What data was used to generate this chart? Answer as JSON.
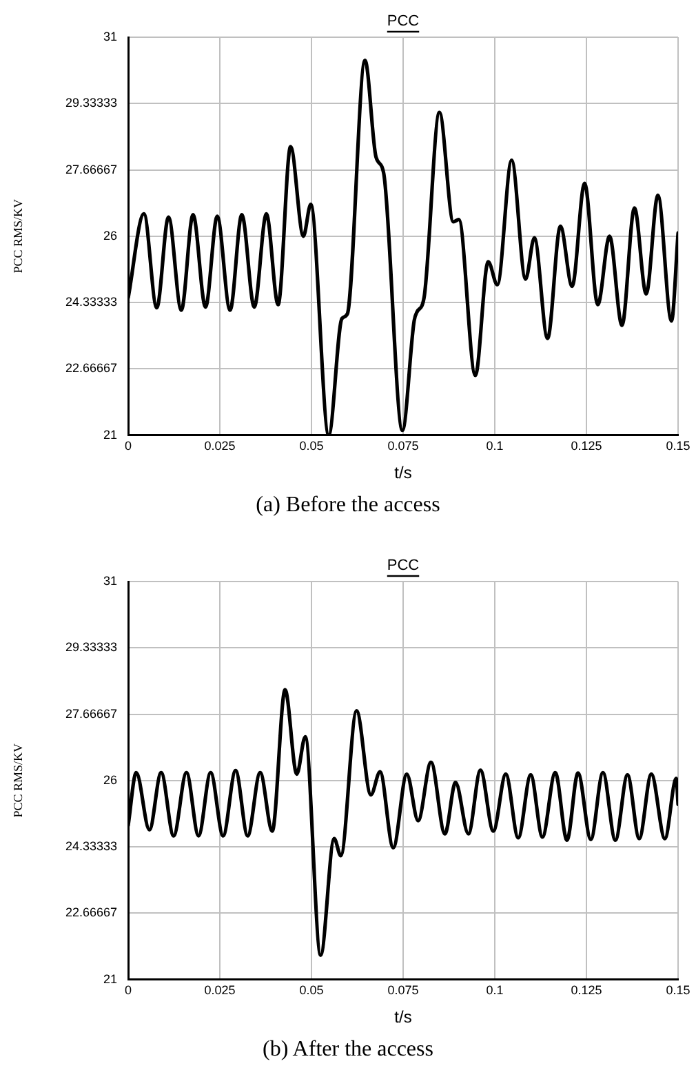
{
  "chart_data": [
    {
      "type": "line",
      "title": "PCC",
      "xlabel": "t/s",
      "ylabel": "PCC RMS/KV",
      "annotations": [
        "(a) Before the access"
      ],
      "xlim": [
        0,
        0.15
      ],
      "xticks": [
        0,
        0.025,
        0.05,
        0.075,
        0.1,
        0.125,
        0.15
      ],
      "ylim": [
        21,
        31
      ],
      "yticks": [
        21,
        22.66667,
        24.33333,
        26,
        27.66667,
        29.33333,
        31
      ],
      "grid": true,
      "legend": false,
      "marker": "none",
      "line_style": "solid",
      "series": [
        {
          "color": "#000000",
          "x": [
            0,
            0.0043,
            0.0078,
            0.011,
            0.0145,
            0.0177,
            0.0211,
            0.0243,
            0.0278,
            0.031,
            0.0344,
            0.0377,
            0.0409,
            0.0443,
            0.0478,
            0.0498,
            0.0547,
            0.0583,
            0.0598,
            0.0646,
            0.0676,
            0.0697,
            0.0748,
            0.078,
            0.0788,
            0.0807,
            0.0849,
            0.0887,
            0.0902,
            0.0947,
            0.0982,
            0.1007,
            0.1046,
            0.1084,
            0.1108,
            0.1144,
            0.1179,
            0.1211,
            0.1245,
            0.1281,
            0.1313,
            0.1347,
            0.1381,
            0.1413,
            0.1445,
            0.1482,
            0.15
          ],
          "values": [
            24.45,
            26.56,
            24.2,
            26.48,
            24.14,
            26.54,
            24.22,
            26.5,
            24.14,
            26.54,
            24.22,
            26.56,
            24.28,
            28.25,
            26.0,
            26.8,
            21.0,
            23.93,
            24.05,
            30.42,
            27.99,
            27.58,
            21.12,
            23.87,
            24.1,
            24.45,
            29.11,
            26.36,
            26.42,
            22.5,
            25.36,
            24.78,
            27.91,
            24.92,
            25.96,
            23.43,
            26.25,
            24.74,
            27.33,
            24.28,
            26.0,
            23.76,
            26.71,
            24.55,
            27.03,
            23.87,
            26.08
          ]
        }
      ]
    },
    {
      "type": "line",
      "title": "PCC",
      "xlabel": "t/s",
      "ylabel": "PCC RMS/KV",
      "annotations": [
        "(b) After the access"
      ],
      "xlim": [
        0,
        0.15
      ],
      "xticks": [
        0,
        0.025,
        0.05,
        0.075,
        0.1,
        0.125,
        0.15
      ],
      "ylim": [
        21,
        31
      ],
      "yticks": [
        21,
        22.66667,
        24.33333,
        26,
        27.66667,
        29.33333,
        31
      ],
      "grid": true,
      "legend": false,
      "marker": "none",
      "line_style": "solid",
      "series": [
        {
          "color": "#000000",
          "x": [
            0,
            0.0022,
            0.0058,
            0.009,
            0.0124,
            0.0159,
            0.0192,
            0.0225,
            0.0259,
            0.0293,
            0.0326,
            0.036,
            0.0393,
            0.0428,
            0.046,
            0.0483,
            0.0525,
            0.0562,
            0.058,
            0.0623,
            0.0662,
            0.0687,
            0.0723,
            0.076,
            0.0791,
            0.0826,
            0.0864,
            0.0893,
            0.0928,
            0.0961,
            0.0996,
            0.103,
            0.1064,
            0.1098,
            0.113,
            0.1165,
            0.1197,
            0.1227,
            0.1262,
            0.1295,
            0.1329,
            0.1362,
            0.1394,
            0.1427,
            0.1464,
            0.1495,
            0.15
          ],
          "values": [
            24.87,
            26.2,
            24.76,
            26.2,
            24.61,
            26.2,
            24.61,
            26.2,
            24.61,
            26.25,
            24.61,
            26.2,
            24.73,
            28.28,
            26.16,
            27.1,
            21.61,
            24.54,
            24.11,
            27.75,
            25.64,
            26.22,
            24.31,
            26.16,
            24.99,
            26.46,
            24.66,
            25.95,
            24.66,
            26.26,
            24.73,
            26.16,
            24.56,
            26.14,
            24.58,
            26.2,
            24.5,
            26.19,
            24.52,
            26.2,
            24.5,
            26.14,
            24.54,
            26.16,
            24.54,
            26.05,
            25.4
          ]
        }
      ]
    }
  ]
}
